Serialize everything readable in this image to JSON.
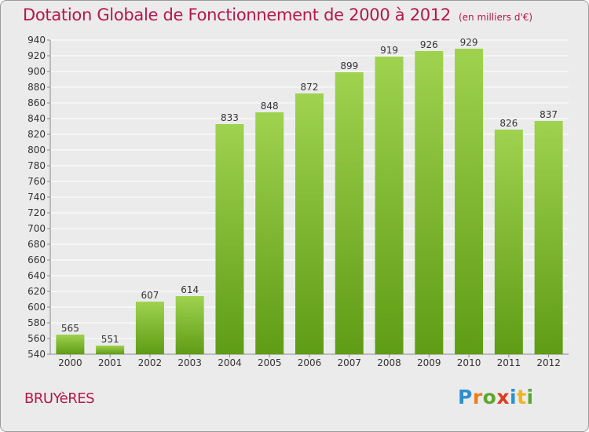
{
  "title": "Dotation Globale de Fonctionnement de 2000 à 2012",
  "unit": "(en milliers d'€)",
  "commune": "BRUYèRES",
  "logo": {
    "text": "Proxiti",
    "colors": [
      "#2e8fd0",
      "#ee7c1c",
      "#5aa82c",
      "#e0391c",
      "#2e8fd0",
      "#f0b418",
      "#5aa82c"
    ]
  },
  "colors": {
    "title": "#b5174d",
    "bar_light": "#9fd24f",
    "bar_dark": "#5f9c15",
    "grid": "#ffffff",
    "background": "#ebebeb"
  },
  "chart_data": {
    "type": "bar",
    "categories": [
      "2000",
      "2001",
      "2002",
      "2003",
      "2004",
      "2005",
      "2006",
      "2007",
      "2008",
      "2009",
      "2010",
      "2011",
      "2012"
    ],
    "values": [
      565,
      551,
      607,
      614,
      833,
      848,
      872,
      899,
      919,
      926,
      929,
      826,
      837
    ],
    "data_labels": [
      "565",
      "551",
      "607",
      "614",
      "833",
      "848",
      "872",
      "899",
      "919",
      "926",
      "929",
      "826",
      "837"
    ],
    "yticks": [
      "540",
      "560",
      "580",
      "600",
      "620",
      "640",
      "660",
      "680",
      "700",
      "720",
      "740",
      "760",
      "780",
      "800",
      "820",
      "840",
      "860",
      "880",
      "900",
      "920",
      "940"
    ],
    "ylim": [
      540,
      940
    ],
    "grid": true
  }
}
